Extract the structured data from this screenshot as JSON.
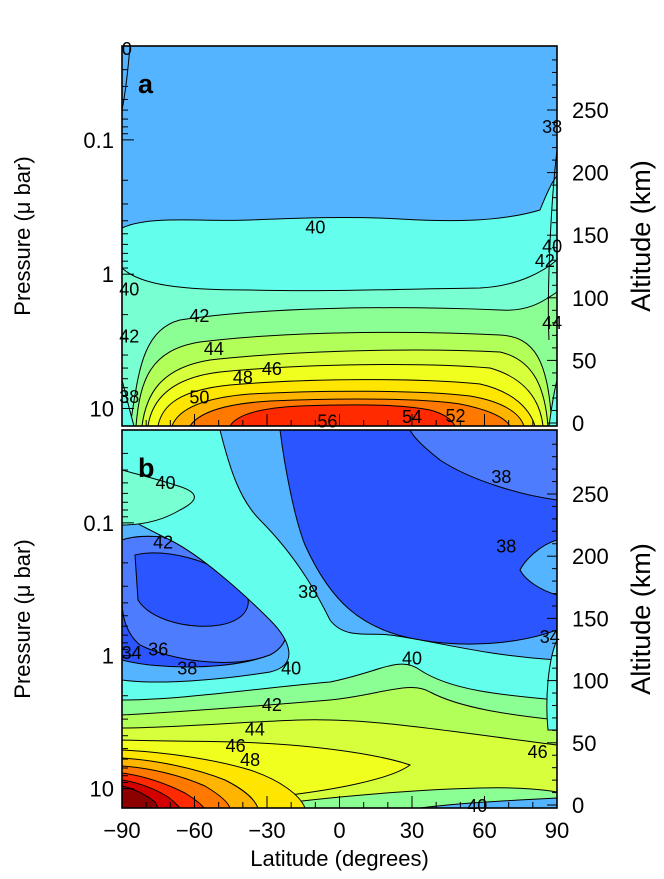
{
  "chart_data": [
    {
      "type": "contour",
      "panel_label": "a",
      "xlabel": "",
      "ylabel": "Pressure (μ bar)",
      "y2label": "Altitude (km)",
      "y_ticks": [
        {
          "label": "0.1",
          "value": 0.1
        },
        {
          "label": "1",
          "value": 1
        },
        {
          "label": "10",
          "value": 10
        }
      ],
      "y2_ticks": [
        {
          "label": "0",
          "value": 0
        },
        {
          "label": "50",
          "value": 50
        },
        {
          "label": "100",
          "value": 100
        },
        {
          "label": "150",
          "value": 150
        },
        {
          "label": "200",
          "value": 200
        },
        {
          "label": "250",
          "value": 250
        }
      ],
      "xlim": [
        -90,
        90
      ],
      "contour_labels": [
        {
          "text": "40",
          "lat": -10,
          "p": 0.45
        },
        {
          "text": "42",
          "lat": -58,
          "p": 2.05
        },
        {
          "text": "44",
          "lat": -52,
          "p": 3.6
        },
        {
          "text": "46",
          "lat": -28,
          "p": 5.1
        },
        {
          "text": "48",
          "lat": -40,
          "p": 5.9
        },
        {
          "text": "50",
          "lat": -58,
          "p": 8.3
        },
        {
          "text": "52",
          "lat": 48,
          "p": 11.4
        },
        {
          "text": "54",
          "lat": 30,
          "p": 11.6
        },
        {
          "text": "56",
          "lat": -5,
          "p": 12.5
        },
        {
          "text": "38",
          "lat": 88,
          "p": 0.08
        },
        {
          "text": "40",
          "lat": -87,
          "p": 1.3
        },
        {
          "text": "42",
          "lat": -87,
          "p": 2.9
        },
        {
          "text": "40",
          "lat": 88,
          "p": 0.62
        },
        {
          "text": "42",
          "lat": 85,
          "p": 0.8
        },
        {
          "text": "44",
          "lat": 88,
          "p": 2.3
        },
        {
          "text": "38",
          "lat": -87,
          "p": 8.2
        },
        {
          "text": "0",
          "lat": -88,
          "p": 0.021
        }
      ]
    },
    {
      "type": "contour",
      "panel_label": "b",
      "xlabel": "Latitude (degrees)",
      "ylabel": "Pressure (μ bar)",
      "y2label": "Altitude (km)",
      "y_ticks": [
        {
          "label": "0.1",
          "value": 0.1
        },
        {
          "label": "1",
          "value": 1
        },
        {
          "label": "10",
          "value": 10
        }
      ],
      "y2_ticks": [
        {
          "label": "0",
          "value": 0
        },
        {
          "label": "50",
          "value": 50
        },
        {
          "label": "100",
          "value": 100
        },
        {
          "label": "150",
          "value": 150
        },
        {
          "label": "200",
          "value": 200
        },
        {
          "label": "250",
          "value": 250
        }
      ],
      "x_ticks": [
        {
          "label": "−90",
          "value": -90
        },
        {
          "label": "−60",
          "value": -60
        },
        {
          "label": "−30",
          "value": -30
        },
        {
          "label": "0",
          "value": 0
        },
        {
          "label": "30",
          "value": 30
        },
        {
          "label": "60",
          "value": 60
        },
        {
          "label": "90",
          "value": 90
        }
      ],
      "xlim": [
        -90,
        90
      ],
      "contour_labels": [
        {
          "text": "40",
          "lat": -72,
          "p": 0.05
        },
        {
          "text": "42",
          "lat": -73,
          "p": 0.14
        },
        {
          "text": "38",
          "lat": -13,
          "p": 0.33
        },
        {
          "text": "38",
          "lat": 67,
          "p": 0.045
        },
        {
          "text": "38",
          "lat": 69,
          "p": 0.15
        },
        {
          "text": "36",
          "lat": -75,
          "p": 0.9
        },
        {
          "text": "38",
          "lat": -63,
          "p": 1.25
        },
        {
          "text": "34",
          "lat": -86,
          "p": 0.95
        },
        {
          "text": "40",
          "lat": -20,
          "p": 1.25
        },
        {
          "text": "40",
          "lat": 30,
          "p": 1.05
        },
        {
          "text": "42",
          "lat": -28,
          "p": 2.35
        },
        {
          "text": "44",
          "lat": -35,
          "p": 3.6
        },
        {
          "text": "46",
          "lat": -43,
          "p": 4.8
        },
        {
          "text": "48",
          "lat": -37,
          "p": 6.1
        },
        {
          "text": "46",
          "lat": 82,
          "p": 5.3
        },
        {
          "text": "40",
          "lat": 57,
          "p": 13.5
        },
        {
          "text": "34",
          "lat": 87,
          "p": 0.72
        }
      ]
    }
  ]
}
